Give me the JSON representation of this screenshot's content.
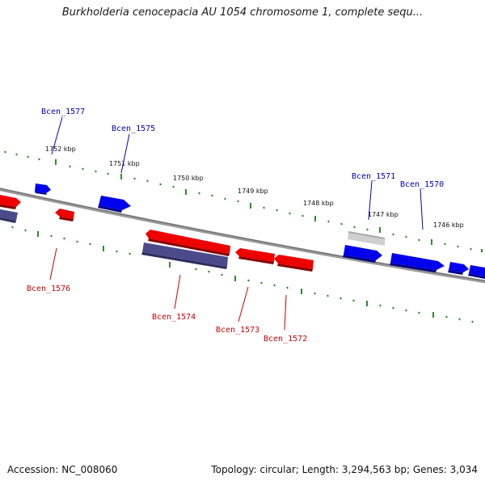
{
  "title": "Burkholderia cenocepacia AU 1054 chromosome 1, complete sequ...",
  "footer": {
    "accession": "Accession: NC_008060",
    "summary": "Topology: circular; Length: 3,294,563 bp; Genes: 3,034"
  },
  "colors": {
    "forward_gene": "#0000ee",
    "reverse_gene": "#ee0000",
    "forward_label": "#0000bb",
    "reverse_label": "#cc0000",
    "grey_gene": "#c8c8c8",
    "purple_gene": "#4b4b8c",
    "backbone": "#808080",
    "tick": "#2e8b2e"
  },
  "ticks": [
    "1752 kbp",
    "1751 kbp",
    "1750 kbp",
    "1749 kbp",
    "1748 kbp",
    "1747 kbp",
    "1746 kbp"
  ],
  "genes_top": [
    {
      "label": "Bcen_1577"
    },
    {
      "label": "Bcen_1575"
    },
    {
      "label": "Bcen_1571"
    },
    {
      "label": "Bcen_1570"
    }
  ],
  "genes_bottom": [
    {
      "label": "Bcen_1576"
    },
    {
      "label": "Bcen_1574"
    },
    {
      "label": "Bcen_1573"
    },
    {
      "label": "Bcen_1572"
    }
  ]
}
